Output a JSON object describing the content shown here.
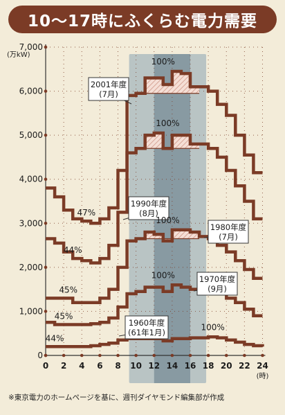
{
  "title": "10〜17時にふくらむ電力需要",
  "source_note": "※東京電力のホームページを基に、週刊ダイヤモンド編集部が作成",
  "colors": {
    "line": "#7b3b26",
    "background": "#f3ecd9",
    "highlight_outer": "#b9c4c4",
    "highlight_inner": "#889aa2",
    "hatch": "#d7a597"
  },
  "chart_data": {
    "type": "line",
    "xlabel": "",
    "ylabel": "",
    "x_unit": "(時)",
    "y_unit": "(万kW)",
    "xlim": [
      0,
      24
    ],
    "ylim": [
      0,
      7000
    ],
    "x_ticks": [
      "0",
      "2",
      "4",
      "6",
      "8",
      "10",
      "12",
      "14",
      "16",
      "18",
      "20",
      "22",
      "24"
    ],
    "y_ticks": [
      "0",
      "1,000",
      "2,000",
      "3,000",
      "4,000",
      "5,000",
      "6,000",
      "7,000"
    ],
    "highlight_x_range": [
      10,
      17
    ],
    "series": [
      {
        "name": "2001年度(7月)",
        "label_lines": [
          "2001年度",
          "(7月)"
        ],
        "values": [
          3800,
          3600,
          3300,
          3100,
          3050,
          3000,
          3100,
          3350,
          4200,
          5900,
          5950,
          6300,
          6300,
          6150,
          6450,
          6400,
          6100,
          6100,
          6000,
          5700,
          5450,
          5000,
          4550,
          4150,
          4150
        ],
        "peak_label": "100%",
        "peak_x": 13,
        "min_label": "47%",
        "min_x": 4.5
      },
      {
        "name": "1990年度(8月)",
        "label_lines": [
          "1990年度",
          "(8月)"
        ],
        "values": [
          2650,
          2550,
          2350,
          2200,
          2150,
          2100,
          2200,
          2500,
          3250,
          4600,
          4700,
          5000,
          5050,
          4700,
          5000,
          5000,
          4800,
          4800,
          4700,
          4500,
          4200,
          3850,
          3500,
          3100,
          3100
        ],
        "peak_label": "100%",
        "peak_x": 13.5,
        "min_label": "44%",
        "min_x": 3
      },
      {
        "name": "1980年度(7月)",
        "label_lines": [
          "1980年度",
          "(7月)"
        ],
        "values": [
          1300,
          1300,
          1300,
          1200,
          1200,
          1200,
          1300,
          1500,
          2000,
          2600,
          2650,
          2800,
          2750,
          2600,
          2850,
          2850,
          2800,
          2700,
          2650,
          2500,
          2350,
          2150,
          1950,
          1750,
          1750
        ],
        "peak_label": "100%",
        "peak_x": 13.5,
        "min_label": "45%",
        "min_x": 2.5
      },
      {
        "name": "1970年度(9月)",
        "label_lines": [
          "1970年度",
          "(9月)"
        ],
        "values": [
          750,
          700,
          700,
          700,
          700,
          720,
          750,
          850,
          1100,
          1400,
          1450,
          1550,
          1550,
          1450,
          1600,
          1550,
          1500,
          1450,
          1450,
          1400,
          1300,
          1200,
          1050,
          900,
          900
        ],
        "peak_label": "100%",
        "peak_x": 13,
        "min_label": "45%",
        "min_x": 2
      },
      {
        "name": "1960年度(61年1月)",
        "label_lines": [
          "1960年度",
          "(61年1月)"
        ],
        "values": [
          200,
          200,
          200,
          200,
          200,
          220,
          250,
          280,
          350,
          380,
          380,
          380,
          380,
          330,
          380,
          380,
          400,
          400,
          420,
          400,
          350,
          300,
          250,
          220,
          200
        ],
        "peak_label": "100%",
        "peak_x": 18.5,
        "min_label": "44%",
        "min_x": 1
      }
    ]
  }
}
